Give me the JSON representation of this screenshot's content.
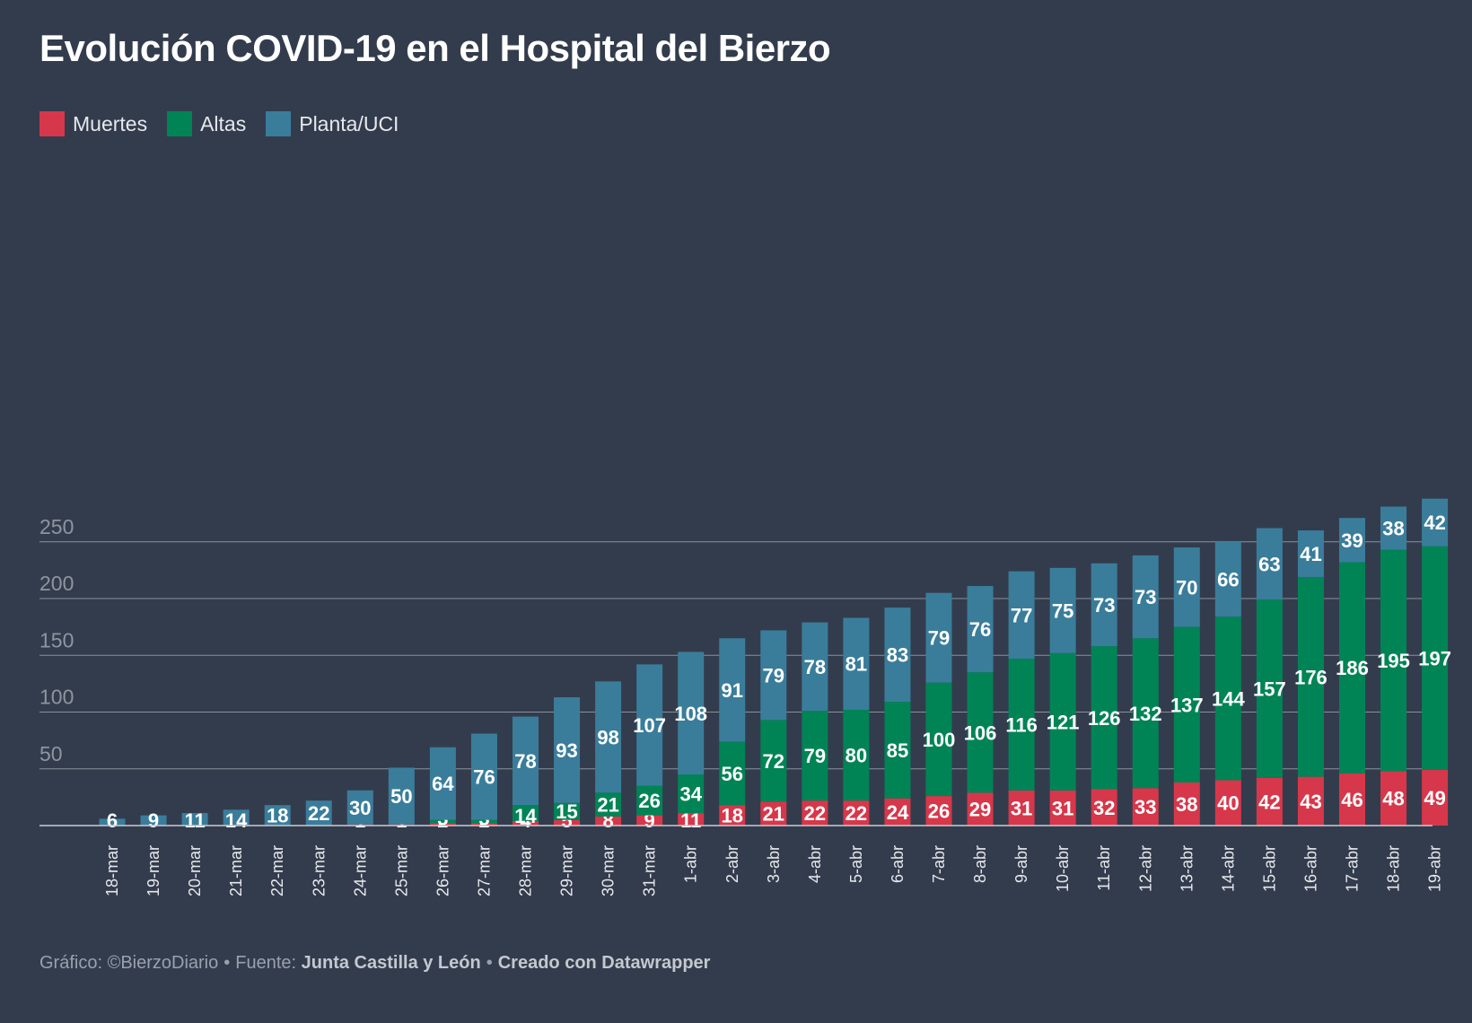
{
  "title": "Evolución COVID-19 en el Hospital del Bierzo",
  "legend": {
    "deaths": "Muertes",
    "discharges": "Altas",
    "ward_icu": "Planta/UCI"
  },
  "colors": {
    "deaths": "#d7374a",
    "discharges": "#008456",
    "ward_icu": "#3a7d9b",
    "background": "#333c4d",
    "grid": "#8a909a",
    "tick_text": "#8f959f"
  },
  "footer": {
    "prefix": "Gráfico: ©BierzoDiario",
    "bullet": "•",
    "source_label": "Fuente:",
    "source": "Junta Castilla y León",
    "credit": "Creado con Datawrapper"
  },
  "chart_data": {
    "type": "bar",
    "stacked": true,
    "title": "Evolución COVID-19 en el Hospital del Bierzo",
    "xlabel": "",
    "ylabel": "",
    "ylim": [
      0,
      290
    ],
    "yticks": [
      50,
      100,
      150,
      200,
      250
    ],
    "grid": true,
    "legend_position": "top-left",
    "categories": [
      "18-mar",
      "19-mar",
      "20-mar",
      "21-mar",
      "22-mar",
      "23-mar",
      "24-mar",
      "25-mar",
      "26-mar",
      "27-mar",
      "28-mar",
      "29-mar",
      "30-mar",
      "31-mar",
      "1-abr",
      "2-abr",
      "3-abr",
      "4-abr",
      "5-abr",
      "6-abr",
      "7-abr",
      "8-abr",
      "9-abr",
      "10-abr",
      "11-abr",
      "12-abr",
      "13-abr",
      "14-abr",
      "15-abr",
      "16-abr",
      "17-abr",
      "18-abr",
      "19-abr"
    ],
    "series": [
      {
        "name": "Muertes",
        "key": "deaths",
        "values": [
          0,
          0,
          0,
          0,
          0,
          0,
          1,
          1,
          2,
          2,
          4,
          5,
          8,
          9,
          11,
          18,
          21,
          22,
          22,
          24,
          26,
          29,
          31,
          31,
          32,
          33,
          38,
          40,
          42,
          43,
          46,
          48,
          49
        ]
      },
      {
        "name": "Altas",
        "key": "discharges",
        "values": [
          0,
          0,
          0,
          0,
          0,
          0,
          0,
          0,
          3,
          3,
          14,
          15,
          21,
          26,
          34,
          56,
          72,
          79,
          80,
          85,
          100,
          106,
          116,
          121,
          126,
          132,
          137,
          144,
          157,
          176,
          186,
          195,
          197
        ]
      },
      {
        "name": "Planta/UCI",
        "key": "ward_icu",
        "values": [
          6,
          9,
          11,
          14,
          18,
          22,
          30,
          50,
          64,
          76,
          78,
          93,
          98,
          107,
          108,
          91,
          79,
          78,
          81,
          83,
          79,
          76,
          77,
          75,
          73,
          73,
          70,
          66,
          63,
          41,
          39,
          38,
          42
        ]
      }
    ]
  }
}
